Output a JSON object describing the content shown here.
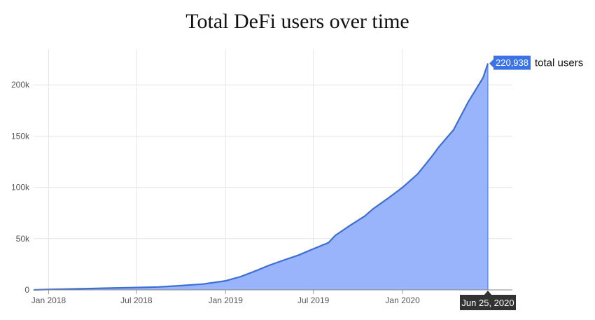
{
  "chart_data": {
    "type": "area",
    "title": "Total DeFi users over time",
    "xlabel": "",
    "ylabel": "",
    "x_range": [
      "2017-12-01",
      "2020-06-25"
    ],
    "ylim": [
      0,
      235000
    ],
    "y_ticks": [
      0,
      50000,
      100000,
      150000,
      200000
    ],
    "y_tick_labels": [
      "0",
      "50k",
      "100k",
      "150k",
      "200k"
    ],
    "x_ticks": [
      "2018-01-01",
      "2018-07-01",
      "2019-01-01",
      "2019-07-01",
      "2020-01-01"
    ],
    "x_tick_labels": [
      "Jan 2018",
      "Jul 2018",
      "Jan 2019",
      "Jul 2019",
      "Jan 2020"
    ],
    "grid": true,
    "series": [
      {
        "color": "#3b6fd6",
        "fill": "#9ab4fb",
        "points": [
          [
            "2017-12-01",
            0
          ],
          [
            "2018-01-01",
            400
          ],
          [
            "2018-03-01",
            1000
          ],
          [
            "2018-05-01",
            1700
          ],
          [
            "2018-07-01",
            2300
          ],
          [
            "2018-08-15",
            2900
          ],
          [
            "2018-10-01",
            4200
          ],
          [
            "2018-11-15",
            5700
          ],
          [
            "2019-01-01",
            8800
          ],
          [
            "2019-02-01",
            13000
          ],
          [
            "2019-03-01",
            18000
          ],
          [
            "2019-04-01",
            24000
          ],
          [
            "2019-05-01",
            29000
          ],
          [
            "2019-06-01",
            34000
          ],
          [
            "2019-07-01",
            40000
          ],
          [
            "2019-08-01",
            46000
          ],
          [
            "2019-08-15",
            53000
          ],
          [
            "2019-09-15",
            63000
          ],
          [
            "2019-10-15",
            72000
          ],
          [
            "2019-11-01",
            79000
          ],
          [
            "2019-12-01",
            89000
          ],
          [
            "2020-01-01",
            100000
          ],
          [
            "2020-02-01",
            113000
          ],
          [
            "2020-03-01",
            130000
          ],
          [
            "2020-03-15",
            139000
          ],
          [
            "2020-04-15",
            156000
          ],
          [
            "2020-05-15",
            183000
          ],
          [
            "2020-06-15",
            207000
          ],
          [
            "2020-06-25",
            220938
          ]
        ]
      }
    ],
    "last_value_label": "220,938",
    "last_value_suffix": "total users",
    "cursor_date_label": "Jun 25, 2020",
    "badge_color": "#3b73e6",
    "cursor_badge_color": "#333333"
  }
}
